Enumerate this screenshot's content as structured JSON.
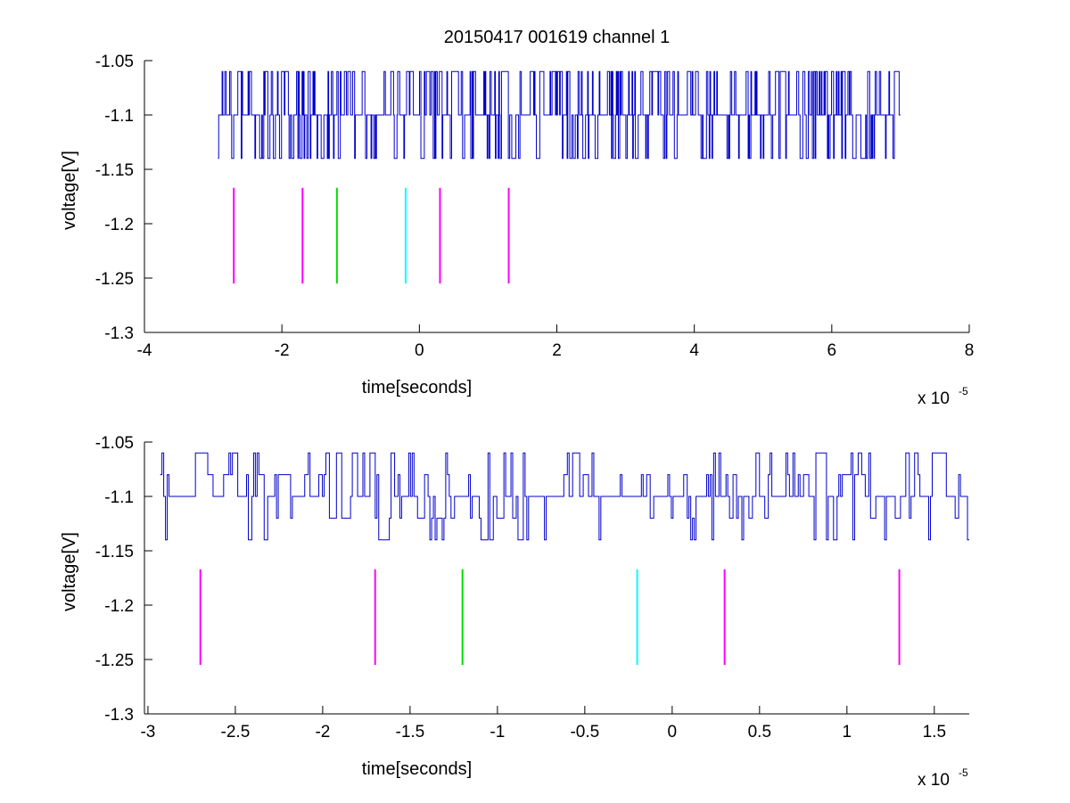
{
  "chart_data": [
    {
      "type": "line",
      "title": "20150417 001619 channel 1",
      "xlabel": "time[seconds]",
      "ylabel": "voltage[V]",
      "x_multiplier": "x 10",
      "x_exponent": "-5",
      "xlim": [
        -4,
        8
      ],
      "ylim": [
        -1.3,
        -1.05
      ],
      "xticks": [
        -4,
        -2,
        0,
        2,
        4,
        6,
        8
      ],
      "xtick_labels": [
        "-4",
        "-2",
        "0",
        "2",
        "4",
        "6",
        "8"
      ],
      "yticks": [
        -1.3,
        -1.25,
        -1.2,
        -1.15,
        -1.1,
        -1.05
      ],
      "ytick_labels": [
        "-1.3",
        "-1.25",
        "-1.2",
        "-1.15",
        "-1.1",
        "-1.05"
      ],
      "grid": false,
      "signal": {
        "color": "#0000cc",
        "x_range": [
          -2.93,
          7.0
        ],
        "baseline": -1.1,
        "levels": [
          -1.14,
          -1.1,
          -1.06
        ],
        "samples": 1000
      },
      "markers": [
        {
          "x": -2.7,
          "y0": -1.255,
          "y1": -1.167,
          "color": "#ff00ff"
        },
        {
          "x": -1.7,
          "y0": -1.255,
          "y1": -1.167,
          "color": "#ff00ff"
        },
        {
          "x": -1.2,
          "y0": -1.255,
          "y1": -1.167,
          "color": "#00dd00"
        },
        {
          "x": -0.2,
          "y0": -1.255,
          "y1": -1.167,
          "color": "#00ffff"
        },
        {
          "x": 0.3,
          "y0": -1.255,
          "y1": -1.167,
          "color": "#ff00ff"
        },
        {
          "x": 1.3,
          "y0": -1.255,
          "y1": -1.167,
          "color": "#ff00ff"
        }
      ]
    },
    {
      "type": "line",
      "title": "",
      "xlabel": "time[seconds]",
      "ylabel": "voltage[V]",
      "x_multiplier": "x 10",
      "x_exponent": "-5",
      "xlim": [
        -3.02,
        1.7
      ],
      "ylim": [
        -1.3,
        -1.05
      ],
      "xticks": [
        -3,
        -2.5,
        -2,
        -1.5,
        -1,
        -0.5,
        0,
        0.5,
        1,
        1.5
      ],
      "xtick_labels": [
        "-3",
        "-2.5",
        "-2",
        "-1.5",
        "-1",
        "-0.5",
        "0",
        "0.5",
        "1",
        "1.5"
      ],
      "yticks": [
        -1.3,
        -1.25,
        -1.2,
        -1.15,
        -1.1,
        -1.05
      ],
      "ytick_labels": [
        "-1.3",
        "-1.25",
        "-1.2",
        "-1.15",
        "-1.1",
        "-1.05"
      ],
      "grid": false,
      "signal": {
        "color": "#0000cc",
        "x_range": [
          -2.93,
          1.7
        ],
        "baseline": -1.1,
        "levels": [
          -1.14,
          -1.12,
          -1.1,
          -1.08,
          -1.06
        ],
        "samples": 460
      },
      "markers": [
        {
          "x": -2.7,
          "y0": -1.255,
          "y1": -1.167,
          "color": "#ff00ff"
        },
        {
          "x": -1.7,
          "y0": -1.255,
          "y1": -1.167,
          "color": "#ff00ff"
        },
        {
          "x": -1.2,
          "y0": -1.255,
          "y1": -1.167,
          "color": "#00dd00"
        },
        {
          "x": -0.2,
          "y0": -1.255,
          "y1": -1.167,
          "color": "#00ffff"
        },
        {
          "x": 0.3,
          "y0": -1.255,
          "y1": -1.167,
          "color": "#ff00ff"
        },
        {
          "x": 1.3,
          "y0": -1.255,
          "y1": -1.167,
          "color": "#ff00ff"
        }
      ]
    }
  ]
}
